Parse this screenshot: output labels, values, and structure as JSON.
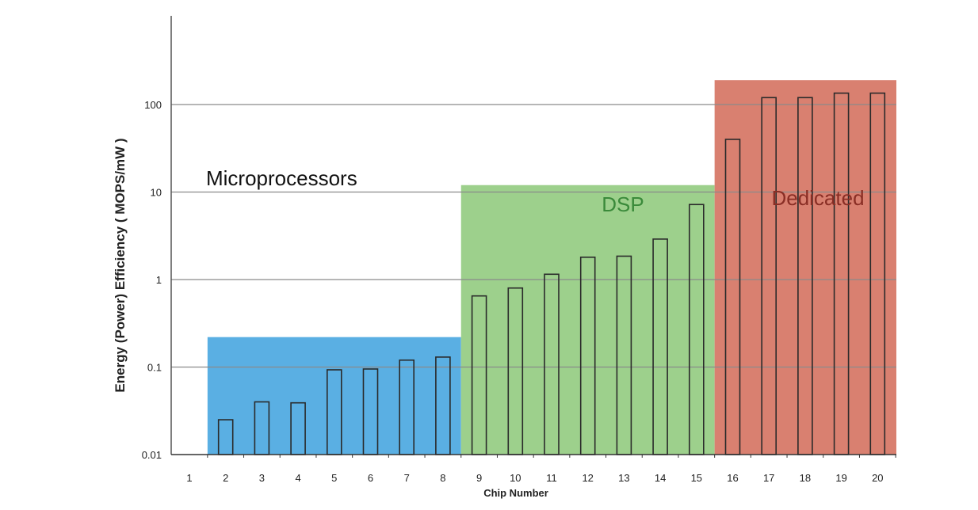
{
  "chart_data": {
    "type": "bar",
    "title": "",
    "xlabel": "Chip Number",
    "ylabel": "Energy (Power) Efficiency ( MOPS/mW )",
    "yscale": "log",
    "ylim": [
      0.01,
      1000
    ],
    "yticks": [
      {
        "value": 0.01,
        "label": "0.01"
      },
      {
        "value": 0.1,
        "label": "0.1"
      },
      {
        "value": 1,
        "label": "1"
      },
      {
        "value": 10,
        "label": "10"
      },
      {
        "value": 100,
        "label": "100"
      }
    ],
    "grid": true,
    "categories": [
      "1",
      "2",
      "3",
      "4",
      "5",
      "6",
      "7",
      "8",
      "9",
      "10",
      "11",
      "12",
      "13",
      "14",
      "15",
      "16",
      "17",
      "18",
      "19",
      "20"
    ],
    "values": [
      null,
      0.025,
      0.04,
      0.039,
      0.093,
      0.095,
      0.12,
      0.13,
      0.65,
      0.8,
      1.15,
      1.8,
      1.85,
      2.9,
      7.2,
      40,
      120,
      120,
      135,
      135
    ],
    "regions": [
      {
        "label": "Microprocessors",
        "first": 2,
        "last": 8,
        "top": 0.22,
        "color": "#5aafe3",
        "label_color": "#111111"
      },
      {
        "label": "DSP",
        "first": 9,
        "last": 15,
        "top": 12,
        "color": "#9dd08c",
        "label_color": "#3a8a3a"
      },
      {
        "label": "Dedicated",
        "first": 16,
        "last": 20,
        "top": 190,
        "color": "#d98070",
        "label_color": "#8a2e25"
      }
    ]
  }
}
